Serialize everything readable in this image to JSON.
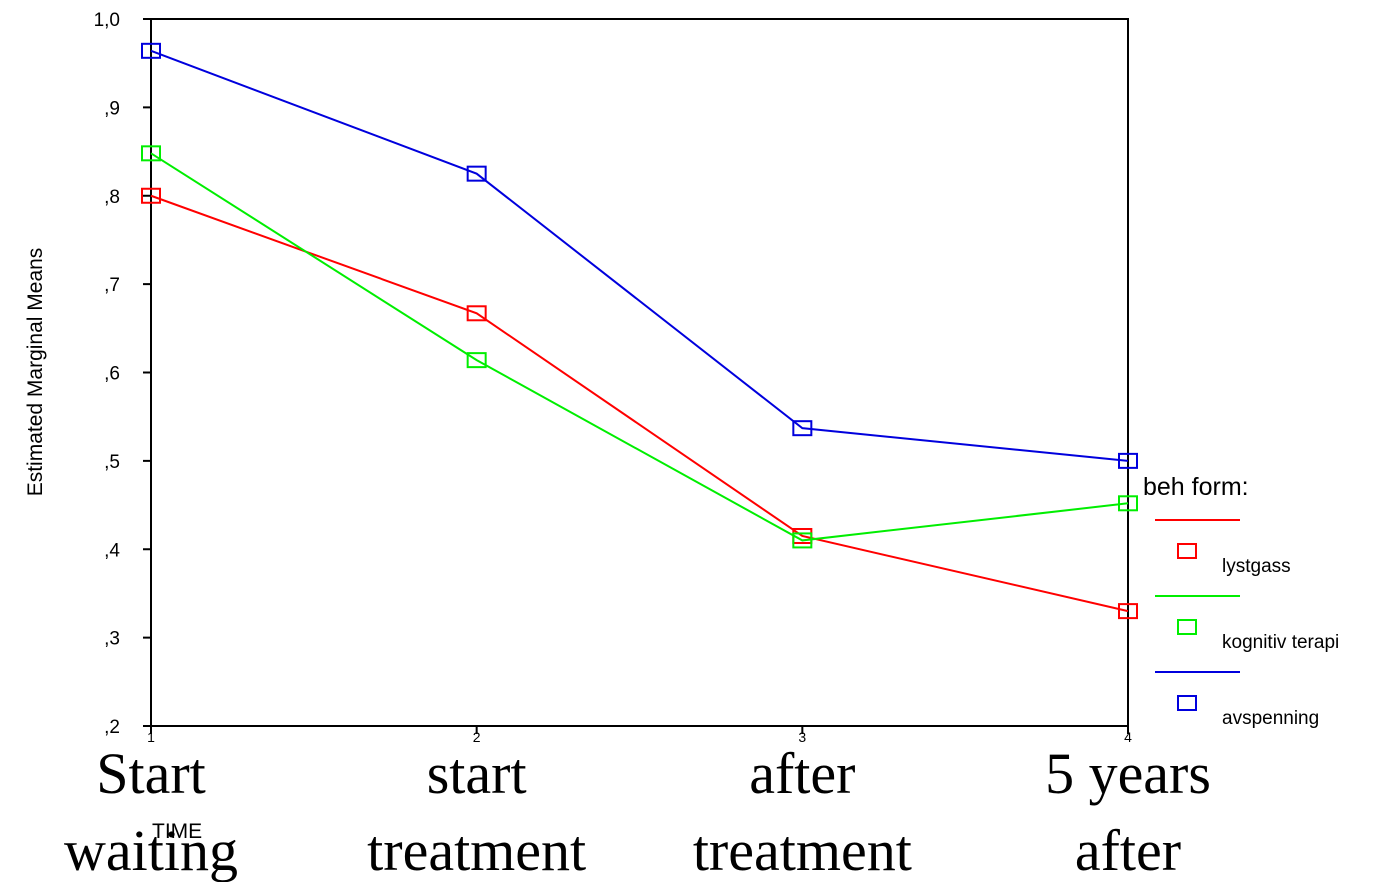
{
  "chart_data": {
    "type": "line",
    "title": "",
    "xlabel": "TIME",
    "ylabel": "Estimated Marginal Means",
    "x": [
      1,
      2,
      3,
      4
    ],
    "x_tick_labels": [
      "1",
      "2",
      "3",
      "4"
    ],
    "x_phase_labels": [
      [
        "Start",
        "waiting"
      ],
      [
        "start",
        "treatment"
      ],
      [
        "after",
        "treatment"
      ],
      [
        "5 years",
        "after"
      ]
    ],
    "ylim": [
      0.2,
      1.0
    ],
    "y_ticks": [
      {
        "value": 1.0,
        "label": "1,0"
      },
      {
        "value": 0.9,
        "label": ",9"
      },
      {
        "value": 0.8,
        "label": ",8"
      },
      {
        "value": 0.7,
        "label": ",7"
      },
      {
        "value": 0.6,
        "label": ",6"
      },
      {
        "value": 0.5,
        "label": ",5"
      },
      {
        "value": 0.4,
        "label": ",4"
      },
      {
        "value": 0.3,
        "label": ",3"
      },
      {
        "value": 0.2,
        "label": ",2"
      }
    ],
    "grid": false,
    "marker": "square",
    "legend": {
      "title": "beh form:",
      "position": "right"
    },
    "series": [
      {
        "name": "lystgass",
        "color": "#ff0000",
        "values": [
          0.8,
          0.667,
          0.415,
          0.33
        ]
      },
      {
        "name": "kognitiv terapi",
        "color": "#00ee00",
        "values": [
          0.848,
          0.614,
          0.41,
          0.452
        ]
      },
      {
        "name": "avspenning",
        "color": "#0000dd",
        "values": [
          0.964,
          0.825,
          0.537,
          0.5
        ]
      }
    ]
  }
}
